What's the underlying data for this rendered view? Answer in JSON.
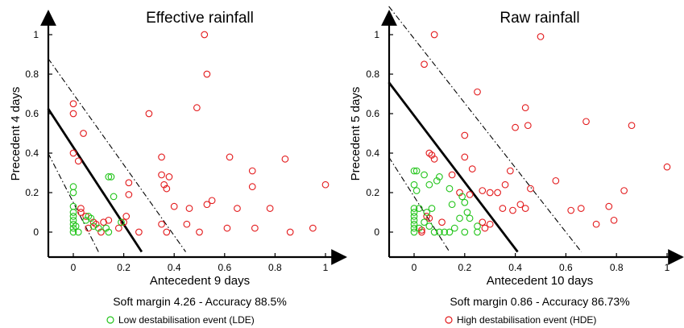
{
  "colors": {
    "hde": "#e31a1c",
    "lde": "#22c41a",
    "axis": "#000000"
  },
  "legend": {
    "lde_label": "Low destabilisation event (LDE)",
    "hde_label": "High destabilisation event (HDE)"
  },
  "chart_data": [
    {
      "type": "scatter",
      "title": "Effective rainfall",
      "xlabel": "Antecedent 9 days",
      "ylabel": "Precedent 4 days",
      "caption": "Soft margin 4.26 - Accuracy 88.5%",
      "xlim": [
        -0.1,
        1.05
      ],
      "ylim": [
        -0.1,
        1.05
      ],
      "xticks": [
        "0",
        "0.2",
        "0.4",
        "0.6",
        "0.8",
        "1"
      ],
      "yticks": [
        "0",
        "0.2",
        "0.4",
        "0.6",
        "0.8",
        "1"
      ],
      "decision_boundary": {
        "x_intercept": 0.22,
        "y_intercept": 0.43
      },
      "margin_lines": [
        {
          "x_intercept": 0.39,
          "y_intercept": 0.7
        },
        {
          "x_intercept": 0.06,
          "y_intercept": 0.15
        }
      ],
      "series": [
        {
          "class": "HDE",
          "points": [
            [
              0.52,
              1.0
            ],
            [
              0.53,
              0.8
            ],
            [
              0.49,
              0.63
            ],
            [
              0.3,
              0.6
            ],
            [
              0.0,
              0.65
            ],
            [
              0.0,
              0.6
            ],
            [
              0.04,
              0.5
            ],
            [
              0.0,
              0.4
            ],
            [
              0.02,
              0.36
            ],
            [
              0.35,
              0.38
            ],
            [
              0.62,
              0.38
            ],
            [
              0.84,
              0.37
            ],
            [
              0.71,
              0.31
            ],
            [
              0.38,
              0.28
            ],
            [
              0.35,
              0.29
            ],
            [
              0.22,
              0.25
            ],
            [
              0.36,
              0.24
            ],
            [
              0.37,
              0.22
            ],
            [
              0.71,
              0.23
            ],
            [
              1.0,
              0.24
            ],
            [
              0.22,
              0.19
            ],
            [
              0.55,
              0.16
            ],
            [
              0.53,
              0.14
            ],
            [
              0.4,
              0.13
            ],
            [
              0.46,
              0.12
            ],
            [
              0.65,
              0.12
            ],
            [
              0.78,
              0.12
            ],
            [
              0.21,
              0.08
            ],
            [
              0.14,
              0.06
            ],
            [
              0.12,
              0.05
            ],
            [
              0.2,
              0.05
            ],
            [
              0.45,
              0.04
            ],
            [
              0.35,
              0.04
            ],
            [
              0.18,
              0.02
            ],
            [
              0.26,
              0.0
            ],
            [
              0.37,
              0.0
            ],
            [
              0.5,
              0.0
            ],
            [
              0.61,
              0.02
            ],
            [
              0.72,
              0.02
            ],
            [
              0.86,
              0.0
            ],
            [
              0.95,
              0.02
            ],
            [
              0.03,
              0.12
            ],
            [
              0.03,
              0.1
            ],
            [
              0.05,
              0.08
            ],
            [
              0.08,
              0.05
            ],
            [
              0.11,
              0.0
            ],
            [
              0.06,
              0.02
            ],
            [
              0.09,
              0.04
            ]
          ]
        },
        {
          "class": "LDE",
          "points": [
            [
              0.0,
              0.23
            ],
            [
              0.0,
              0.2
            ],
            [
              0.14,
              0.28
            ],
            [
              0.15,
              0.28
            ],
            [
              0.16,
              0.18
            ],
            [
              0.0,
              0.13
            ],
            [
              0.0,
              0.1
            ],
            [
              0.0,
              0.08
            ],
            [
              0.0,
              0.06
            ],
            [
              0.0,
              0.04
            ],
            [
              0.0,
              0.02
            ],
            [
              0.0,
              0.0
            ],
            [
              0.02,
              0.0
            ],
            [
              0.05,
              0.06
            ],
            [
              0.07,
              0.07
            ],
            [
              0.06,
              0.08
            ],
            [
              0.08,
              0.03
            ],
            [
              0.1,
              0.02
            ],
            [
              0.13,
              0.02
            ],
            [
              0.14,
              0.0
            ],
            [
              0.19,
              0.05
            ],
            [
              0.01,
              0.03
            ]
          ]
        }
      ]
    },
    {
      "type": "scatter",
      "title": "Raw rainfall",
      "xlabel": "Antecedent 10 days",
      "ylabel": "Precedent 5 days",
      "caption": "Soft margin 0.86 - Accuracy 86.73%",
      "xlim": [
        -0.1,
        1.05
      ],
      "ylim": [
        -0.1,
        1.05
      ],
      "xticks": [
        "0",
        "0.2",
        "0.4",
        "0.6",
        "0.8",
        "1"
      ],
      "yticks": [
        "0",
        "0.2",
        "0.4",
        "0.6",
        "0.8",
        "1"
      ],
      "decision_boundary": {
        "x_intercept": 0.35,
        "y_intercept": 0.59
      },
      "margin_lines": [
        {
          "x_intercept": 0.6,
          "y_intercept": 0.98
        },
        {
          "x_intercept": 0.09,
          "y_intercept": 0.18
        }
      ],
      "series": [
        {
          "class": "HDE",
          "points": [
            [
              0.08,
              1.0
            ],
            [
              0.5,
              0.99
            ],
            [
              0.04,
              0.85
            ],
            [
              0.25,
              0.71
            ],
            [
              0.44,
              0.63
            ],
            [
              0.68,
              0.56
            ],
            [
              0.45,
              0.54
            ],
            [
              0.86,
              0.54
            ],
            [
              0.4,
              0.53
            ],
            [
              0.2,
              0.49
            ],
            [
              0.06,
              0.4
            ],
            [
              0.07,
              0.39
            ],
            [
              0.08,
              0.37
            ],
            [
              0.2,
              0.38
            ],
            [
              0.23,
              0.32
            ],
            [
              0.38,
              0.31
            ],
            [
              1.0,
              0.33
            ],
            [
              0.15,
              0.29
            ],
            [
              0.36,
              0.24
            ],
            [
              0.46,
              0.22
            ],
            [
              0.56,
              0.26
            ],
            [
              0.83,
              0.21
            ],
            [
              0.27,
              0.21
            ],
            [
              0.3,
              0.2
            ],
            [
              0.22,
              0.19
            ],
            [
              0.18,
              0.2
            ],
            [
              0.33,
              0.2
            ],
            [
              0.42,
              0.14
            ],
            [
              0.44,
              0.12
            ],
            [
              0.35,
              0.12
            ],
            [
              0.39,
              0.11
            ],
            [
              0.62,
              0.11
            ],
            [
              0.66,
              0.12
            ],
            [
              0.77,
              0.13
            ],
            [
              0.72,
              0.04
            ],
            [
              0.79,
              0.06
            ],
            [
              0.27,
              0.05
            ],
            [
              0.3,
              0.04
            ],
            [
              0.28,
              0.02
            ],
            [
              0.05,
              0.08
            ],
            [
              0.06,
              0.07
            ],
            [
              0.11,
              0.05
            ],
            [
              0.03,
              0.0
            ],
            [
              0.03,
              0.01
            ]
          ]
        },
        {
          "class": "LDE",
          "points": [
            [
              0.0,
              0.31
            ],
            [
              0.01,
              0.31
            ],
            [
              0.04,
              0.29
            ],
            [
              0.1,
              0.28
            ],
            [
              0.0,
              0.24
            ],
            [
              0.01,
              0.21
            ],
            [
              0.06,
              0.24
            ],
            [
              0.09,
              0.26
            ],
            [
              0.14,
              0.22
            ],
            [
              0.19,
              0.18
            ],
            [
              0.2,
              0.15
            ],
            [
              0.15,
              0.14
            ],
            [
              0.21,
              0.1
            ],
            [
              0.18,
              0.07
            ],
            [
              0.22,
              0.07
            ],
            [
              0.0,
              0.12
            ],
            [
              0.0,
              0.1
            ],
            [
              0.0,
              0.08
            ],
            [
              0.0,
              0.06
            ],
            [
              0.0,
              0.04
            ],
            [
              0.0,
              0.02
            ],
            [
              0.0,
              0.0
            ],
            [
              0.02,
              0.02
            ],
            [
              0.04,
              0.05
            ],
            [
              0.06,
              0.03
            ],
            [
              0.08,
              0.0
            ],
            [
              0.1,
              0.0
            ],
            [
              0.12,
              0.0
            ],
            [
              0.14,
              0.0
            ],
            [
              0.16,
              0.02
            ],
            [
              0.2,
              0.0
            ],
            [
              0.25,
              0.03
            ],
            [
              0.25,
              0.0
            ],
            [
              0.02,
              0.12
            ],
            [
              0.05,
              0.1
            ],
            [
              0.07,
              0.12
            ]
          ]
        }
      ]
    }
  ]
}
